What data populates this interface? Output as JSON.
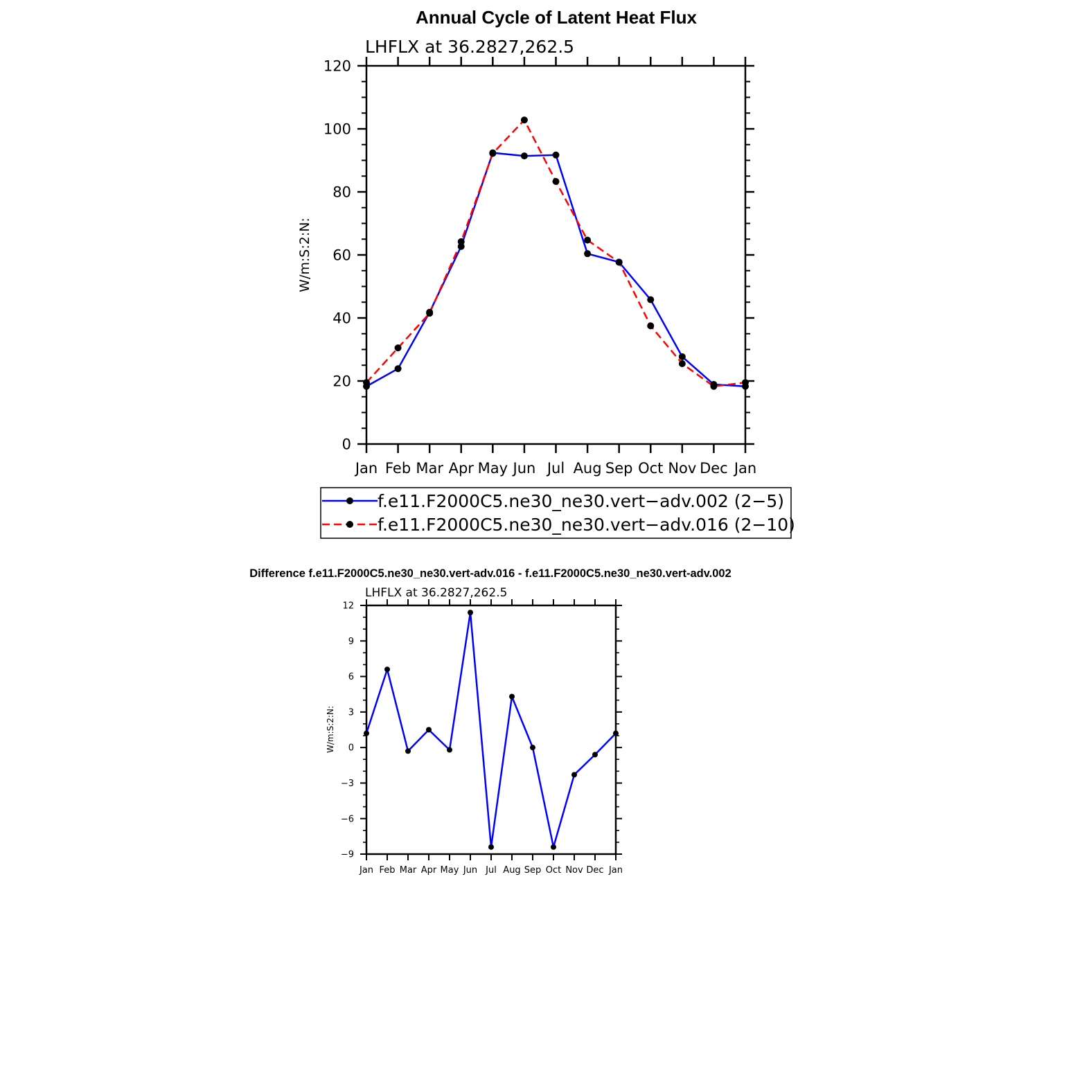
{
  "colors": {
    "series1": "#0000ff",
    "series2": "#ff0000",
    "marker": "#000000",
    "axis": "#000000"
  },
  "chart_data": [
    {
      "type": "line",
      "title": "Annual Cycle of Latent Heat Flux",
      "subtitle": "LHFLX at 36.2827,262.5",
      "ylabel": "W/m:S:2:N:",
      "xlabel": "",
      "categories": [
        "Jan",
        "Feb",
        "Mar",
        "Apr",
        "May",
        "Jun",
        "Jul",
        "Aug",
        "Sep",
        "Oct",
        "Nov",
        "Dec",
        "Jan"
      ],
      "ylim": [
        0,
        120
      ],
      "yticks": [
        0,
        20,
        40,
        60,
        80,
        100,
        120
      ],
      "series": [
        {
          "name": "f.e11.F2000C5.ne30_ne30.vert−adv.002 (2−5)",
          "style": "solid",
          "values": [
            18.3,
            23.9,
            41.8,
            62.7,
            92.4,
            91.4,
            91.7,
            60.4,
            57.7,
            45.8,
            27.7,
            18.9,
            18.3
          ]
        },
        {
          "name": "f.e11.F2000C5.ne30_ne30.vert−adv.016 (2−10)",
          "style": "dashed",
          "values": [
            19.5,
            30.5,
            41.5,
            64.2,
            92.2,
            102.8,
            83.3,
            64.7,
            57.7,
            37.5,
            25.5,
            18.3,
            19.5
          ]
        }
      ],
      "legend_position": "bottom"
    },
    {
      "type": "line",
      "title": "Difference f.e11.F2000C5.ne30_ne30.vert-adv.016 - f.e11.F2000C5.ne30_ne30.vert-adv.002",
      "subtitle": "LHFLX at 36.2827,262.5",
      "ylabel": "W/m:S:2:N:",
      "xlabel": "",
      "categories": [
        "Jan",
        "Feb",
        "Mar",
        "Apr",
        "May",
        "Jun",
        "Jul",
        "Aug",
        "Sep",
        "Oct",
        "Nov",
        "Dec",
        "Jan"
      ],
      "ylim": [
        -9,
        12
      ],
      "yticks": [
        -9,
        -6,
        -3,
        0,
        3,
        6,
        9,
        12
      ],
      "ytick_labels": [
        "−9",
        "−6",
        "−3",
        "0",
        "3",
        "6",
        "9",
        "12"
      ],
      "series": [
        {
          "style": "solid",
          "values": [
            1.2,
            6.6,
            -0.3,
            1.5,
            -0.2,
            11.4,
            -8.4,
            4.3,
            0.0,
            -8.4,
            -2.3,
            -0.6,
            1.2
          ]
        }
      ]
    }
  ]
}
